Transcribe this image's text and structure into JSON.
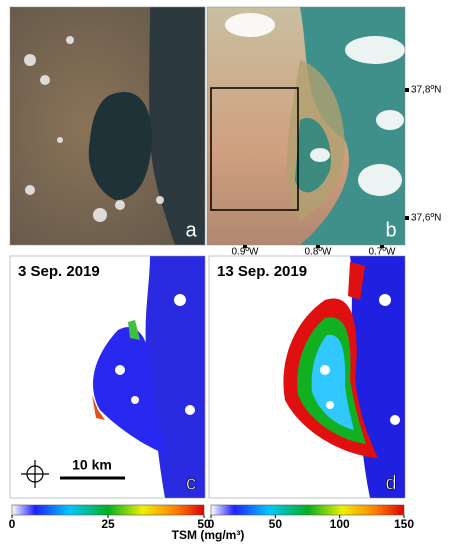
{
  "panels": [
    {
      "letter": "a"
    },
    {
      "letter": "b"
    },
    {
      "letter": "c",
      "title": "3 Sep. 2019"
    },
    {
      "letter": "d",
      "title": "13 Sep. 2019"
    }
  ],
  "lat_labels": [
    "37,8ºN",
    "37,6ºN"
  ],
  "lon_labels": [
    "0.9ºW",
    "0.8ºW",
    "0.7ºW"
  ],
  "scale_bar": "10 km",
  "colorbars": [
    {
      "range": [
        0,
        50
      ],
      "ticks": [
        0,
        25,
        50
      ]
    },
    {
      "range": [
        0,
        150
      ],
      "ticks": [
        0,
        50,
        100,
        150
      ]
    }
  ],
  "colorbar_label": "TSM (mg/m³)"
}
